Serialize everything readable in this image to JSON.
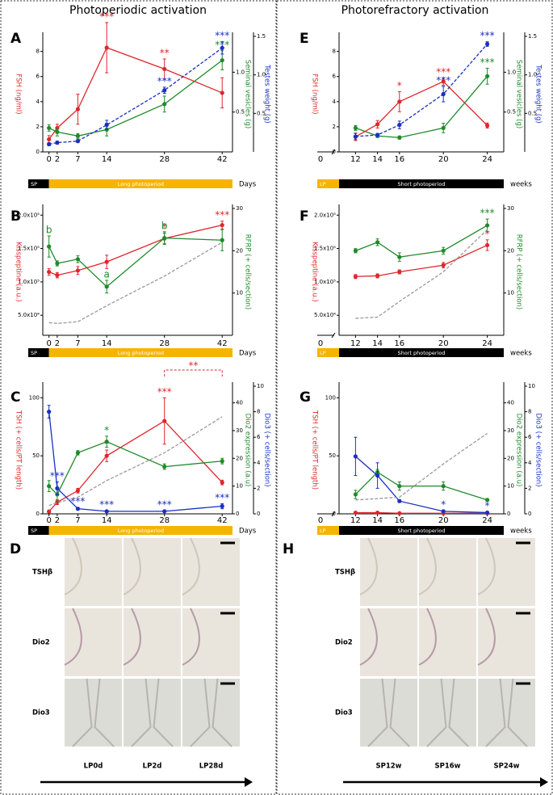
{
  "columns": [
    "Photoperiodic activation",
    "Photorefractory activation"
  ],
  "chart_data": [
    {
      "type": "line",
      "panel": "A",
      "xlabel": "Days",
      "x": [
        0,
        2,
        7,
        14,
        28,
        42
      ],
      "xlim": [
        -1.5,
        44.5
      ],
      "xticks": [
        0,
        2,
        7,
        14,
        28,
        42
      ],
      "ylabel": "FSH (ng/ml)",
      "ylim": [
        0,
        9.2
      ],
      "yticks": [
        0,
        2,
        4,
        6,
        8
      ],
      "y2label": "Seminal vesicles (g)",
      "y2lim": [
        0,
        1.45
      ],
      "y2ticks": [
        0.5,
        {
          "value": 1,
          "label": "1.0"
        }
      ],
      "y3label": "Testes weight (g)",
      "y3lim": [
        0,
        1.5
      ],
      "y3ticks": [
        0.5,
        {
          "value": 1,
          "label": "1.0"
        },
        1.5
      ],
      "period": [
        {
          "label": "SP",
          "color": "#000000"
        },
        {
          "label": "Long photoperiod",
          "color": "#f5b400",
          "from": 0
        }
      ],
      "series": [
        {
          "axis": "y",
          "color": "#e0262b",
          "values": [
            1.0,
            1.9,
            3.4,
            8.3,
            6.6,
            4.7
          ],
          "errors": [
            0.3,
            0.3,
            1.2,
            2.0,
            0.8,
            1.2
          ],
          "annotations": [
            null,
            null,
            null,
            "***",
            "**",
            null
          ]
        },
        {
          "axis": "y2",
          "color": "#1f8a2a",
          "values": [
            0.3,
            0.25,
            0.2,
            0.28,
            0.6,
            1.15
          ],
          "errors": [
            0.04,
            0.05,
            0.03,
            0.08,
            0.1,
            0.12
          ],
          "annotations": [
            null,
            null,
            null,
            null,
            null,
            "***"
          ]
        },
        {
          "axis": "y3",
          "color": "#1a2fc2",
          "dashed": true,
          "values": [
            0.1,
            0.12,
            0.14,
            0.35,
            0.8,
            1.35
          ],
          "errors": [
            0.02,
            0.02,
            0.02,
            0.06,
            0.04,
            0.08
          ],
          "annotations": [
            null,
            null,
            null,
            null,
            "***",
            "***"
          ]
        }
      ]
    },
    {
      "type": "line",
      "panel": "B",
      "xlabel": "Days",
      "x": [
        0,
        2,
        7,
        14,
        28,
        42
      ],
      "xlim": [
        -1.5,
        44.5
      ],
      "xticks": [
        0,
        2,
        7,
        14,
        28,
        42
      ],
      "ylabel": "Kisspeptine (a.u.)",
      "ylim": [
        20000,
        210000
      ],
      "yticks": [
        {
          "value": 50000,
          "label": "5.0x10⁴"
        },
        {
          "value": 100000,
          "label": "1.0x10⁵"
        },
        {
          "value": 150000,
          "label": "1.5x10⁵"
        },
        {
          "value": 200000,
          "label": "2.0x10⁵"
        }
      ],
      "y2label": "RFRP (+ cells/section)",
      "y2lim": [
        0,
        30
      ],
      "y2ticks": [
        10,
        20,
        30
      ],
      "period": [
        {
          "label": "SP",
          "color": "#000000"
        },
        {
          "label": "Long photoperiod",
          "color": "#f5b400",
          "from": 0
        }
      ],
      "series": [
        {
          "axis": "y",
          "color": "#e0262b",
          "values": [
            115000,
            110000,
            117000,
            130000,
            165000,
            185000
          ],
          "errors": [
            5000,
            4000,
            6000,
            10000,
            8000,
            6000
          ],
          "annotations": [
            null,
            null,
            null,
            null,
            "*",
            "***"
          ]
        },
        {
          "axis": "y2",
          "color": "#1f8a2a",
          "values": [
            21,
            17,
            18,
            11.5,
            23,
            22.5
          ],
          "errors": [
            2.5,
            0.6,
            0.8,
            1.5,
            1.5,
            2.5
          ],
          "annotations": [
            "b",
            null,
            null,
            "a",
            "b",
            null
          ]
        },
        {
          "axis": "y2",
          "color": "#9a9a9a",
          "dashed": true,
          "markers": false,
          "values": [
            3,
            2.8,
            3.2,
            7,
            14,
            22
          ]
        }
      ]
    },
    {
      "type": "line",
      "panel": "C",
      "xlabel": "Days",
      "x": [
        0,
        2,
        7,
        14,
        28,
        42
      ],
      "xlim": [
        -1.5,
        44.5
      ],
      "xticks": [
        0,
        2,
        7,
        14,
        28,
        42
      ],
      "ylabel": "TSH (+ cells/PT length)",
      "ylim": [
        0,
        110
      ],
      "yticks": [
        0,
        50,
        100
      ],
      "y2label": "Dio2 expression (a.u)",
      "y2lim": [
        0,
        46
      ],
      "y2ticks": [
        0,
        10,
        20,
        30,
        40
      ],
      "y3label": "Dio3 (+ cells/section)",
      "y3lim": [
        0,
        10
      ],
      "y3ticks": [
        0,
        2,
        4,
        6,
        8,
        10
      ],
      "bracket": {
        "text": "**",
        "from": 28,
        "to": 42
      },
      "period": [
        {
          "label": "SP",
          "color": "#000000"
        },
        {
          "label": "Long photoperiod",
          "color": "#f5b400",
          "from": 0
        }
      ],
      "series": [
        {
          "axis": "y",
          "color": "#e0262b",
          "values": [
            2,
            10,
            20,
            50,
            80,
            27
          ],
          "errors": [
            1,
            2,
            2,
            5,
            20,
            2
          ],
          "annotations": [
            null,
            null,
            null,
            "*",
            "***",
            null
          ]
        },
        {
          "axis": "y2",
          "color": "#1f8a2a",
          "values": [
            10,
            7,
            22,
            26,
            17,
            19
          ],
          "errors": [
            2,
            2,
            0.8,
            2,
            1,
            1
          ],
          "annotations": [
            null,
            null,
            null,
            "*",
            null,
            null
          ]
        },
        {
          "axis": "y3",
          "color": "#1a2fc2",
          "values": [
            8,
            2,
            0.4,
            0.2,
            0.2,
            0.6
          ],
          "errors": [
            0.5,
            0.5,
            0.1,
            0.05,
            0.05,
            0.2
          ],
          "annotations": [
            null,
            "***",
            "***",
            "***",
            "***",
            "***"
          ]
        },
        {
          "axis": "y2",
          "color": "#9a9a9a",
          "dashed": true,
          "markers": false,
          "values": [
            3,
            4,
            6,
            12,
            22,
            35
          ]
        }
      ]
    },
    {
      "type": "line",
      "panel": "E",
      "xlabel": "weeks",
      "x_break_label": "0",
      "x": [
        12,
        14,
        16,
        20,
        24
      ],
      "xlim": [
        10.5,
        25.5
      ],
      "xticks": [
        12,
        14,
        16,
        20,
        24
      ],
      "ylabel": "FSH (ng/ml)",
      "ylim": [
        0,
        9.2
      ],
      "yticks": [
        0,
        2,
        4,
        6,
        8
      ],
      "y2label": "Seminal vesicles (g)",
      "y2lim": [
        0,
        1.45
      ],
      "y2ticks": [
        0.5,
        {
          "value": 1,
          "label": "1.0"
        }
      ],
      "y3label": "Testes weight (g)",
      "y3lim": [
        0,
        1.5
      ],
      "y3ticks": [
        0.5,
        {
          "value": 1,
          "label": "1.0"
        },
        1.5
      ],
      "period": [
        {
          "label": "LP",
          "color": "#f5b400"
        },
        {
          "label": "Short photoperiod",
          "color": "#000000",
          "from": 10.5
        }
      ],
      "series": [
        {
          "axis": "y",
          "color": "#e0262b",
          "values": [
            1.2,
            2.2,
            4.0,
            5.6,
            2.1
          ],
          "errors": [
            0.3,
            0.3,
            0.8,
            0.3,
            0.2
          ],
          "annotations": [
            null,
            null,
            "*",
            "***",
            null
          ]
        },
        {
          "axis": "y2",
          "color": "#1f8a2a",
          "values": [
            0.3,
            0.2,
            0.18,
            0.3,
            0.95
          ],
          "errors": [
            0.03,
            0.02,
            0.02,
            0.06,
            0.1
          ],
          "annotations": [
            null,
            null,
            null,
            null,
            "***"
          ]
        },
        {
          "axis": "y3",
          "color": "#1a2fc2",
          "dashed": true,
          "values": [
            0.2,
            0.22,
            0.35,
            0.75,
            1.4
          ],
          "errors": [
            0.04,
            0.02,
            0.05,
            0.1,
            0.03
          ],
          "annotations": [
            null,
            null,
            null,
            "***",
            "***"
          ]
        }
      ]
    },
    {
      "type": "line",
      "panel": "F",
      "xlabel": "weeks",
      "x_break_label": "0",
      "x": [
        12,
        14,
        16,
        20,
        24
      ],
      "xlim": [
        10.5,
        25.5
      ],
      "xticks": [
        12,
        14,
        16,
        20,
        24
      ],
      "ylabel": "Kisspeptine (a.u.)",
      "ylim": [
        20000,
        210000
      ],
      "yticks": [
        {
          "value": 50000,
          "label": "5.0x10⁴"
        },
        {
          "value": 100000,
          "label": "1.0x10⁵"
        },
        {
          "value": 150000,
          "label": "1.5x10⁵"
        },
        {
          "value": 200000,
          "label": "2.0x10⁵"
        }
      ],
      "y2label": "RFRP (+ cells/section)",
      "y2lim": [
        0,
        30
      ],
      "y2ticks": [
        10,
        20,
        30
      ],
      "period": [
        {
          "label": "LP",
          "color": "#f5b400"
        },
        {
          "label": "Short photoperiod",
          "color": "#000000",
          "from": 10.5
        }
      ],
      "series": [
        {
          "axis": "y",
          "color": "#e0262b",
          "values": [
            108000,
            109000,
            115000,
            125000,
            155000
          ],
          "errors": [
            3000,
            3000,
            3000,
            4000,
            8000
          ],
          "annotations": [
            null,
            null,
            null,
            null,
            "*"
          ]
        },
        {
          "axis": "y2",
          "color": "#1f8a2a",
          "values": [
            20,
            22,
            18.5,
            20,
            26
          ],
          "errors": [
            0.5,
            0.8,
            1,
            0.8,
            1.5
          ],
          "annotations": [
            null,
            null,
            null,
            null,
            "***"
          ]
        },
        {
          "axis": "y2",
          "color": "#9a9a9a",
          "dashed": true,
          "markers": false,
          "values": [
            4,
            4.3,
            8,
            15,
            25
          ]
        }
      ]
    },
    {
      "type": "line",
      "panel": "G",
      "xlabel": "weeks",
      "x_break_label": "0",
      "x": [
        12,
        14,
        16,
        20,
        24
      ],
      "xlim": [
        10.5,
        25.5
      ],
      "xticks": [
        12,
        14,
        16,
        20,
        24
      ],
      "ylabel": "TSH (+ cells/PT length)",
      "ylim": [
        0,
        110
      ],
      "yticks": [
        0,
        50,
        100
      ],
      "y2label": "Dio2 expression (a.u)",
      "y2lim": [
        0,
        46
      ],
      "y2ticks": [
        0,
        10,
        20,
        30,
        40
      ],
      "y3label": "Dio3 (+ cells/section)",
      "y3lim": [
        0,
        10
      ],
      "y3ticks": [
        0,
        2,
        4,
        6,
        8,
        10
      ],
      "period": [
        {
          "label": "LP",
          "color": "#f5b400"
        },
        {
          "label": "Short photoperiod",
          "color": "#000000",
          "from": 10.5
        }
      ],
      "series": [
        {
          "axis": "y",
          "color": "#e0262b",
          "values": [
            1,
            1,
            0.5,
            0.5,
            0.5
          ],
          "errors": [
            0.3,
            0.3,
            0.2,
            0.2,
            0.2
          ]
        },
        {
          "axis": "y2",
          "color": "#1f8a2a",
          "values": [
            7,
            15,
            10,
            10,
            5
          ],
          "errors": [
            1.5,
            1,
            1.5,
            1.5,
            0.5
          ]
        },
        {
          "axis": "y3",
          "color": "#1a2fc2",
          "values": [
            4.5,
            3,
            1,
            0.2,
            0.1
          ],
          "errors": [
            1.5,
            1,
            0.1,
            0.05,
            0.05
          ],
          "annotations": [
            null,
            null,
            null,
            "*",
            "*"
          ]
        },
        {
          "axis": "y2",
          "color": "#9a9a9a",
          "dashed": true,
          "markers": false,
          "values": [
            5,
            5.5,
            6,
            18,
            29
          ]
        }
      ]
    }
  ],
  "image_panels": [
    {
      "panel": "D",
      "rows": [
        "TSHβ",
        "Dio2",
        "Dio3"
      ],
      "columns": [
        "LP0d",
        "LP2d",
        "LP28d"
      ]
    },
    {
      "panel": "H",
      "rows": [
        "TSHβ",
        "Dio2",
        "Dio3"
      ],
      "columns": [
        "SP12w",
        "SP16w",
        "SP24w"
      ]
    }
  ]
}
